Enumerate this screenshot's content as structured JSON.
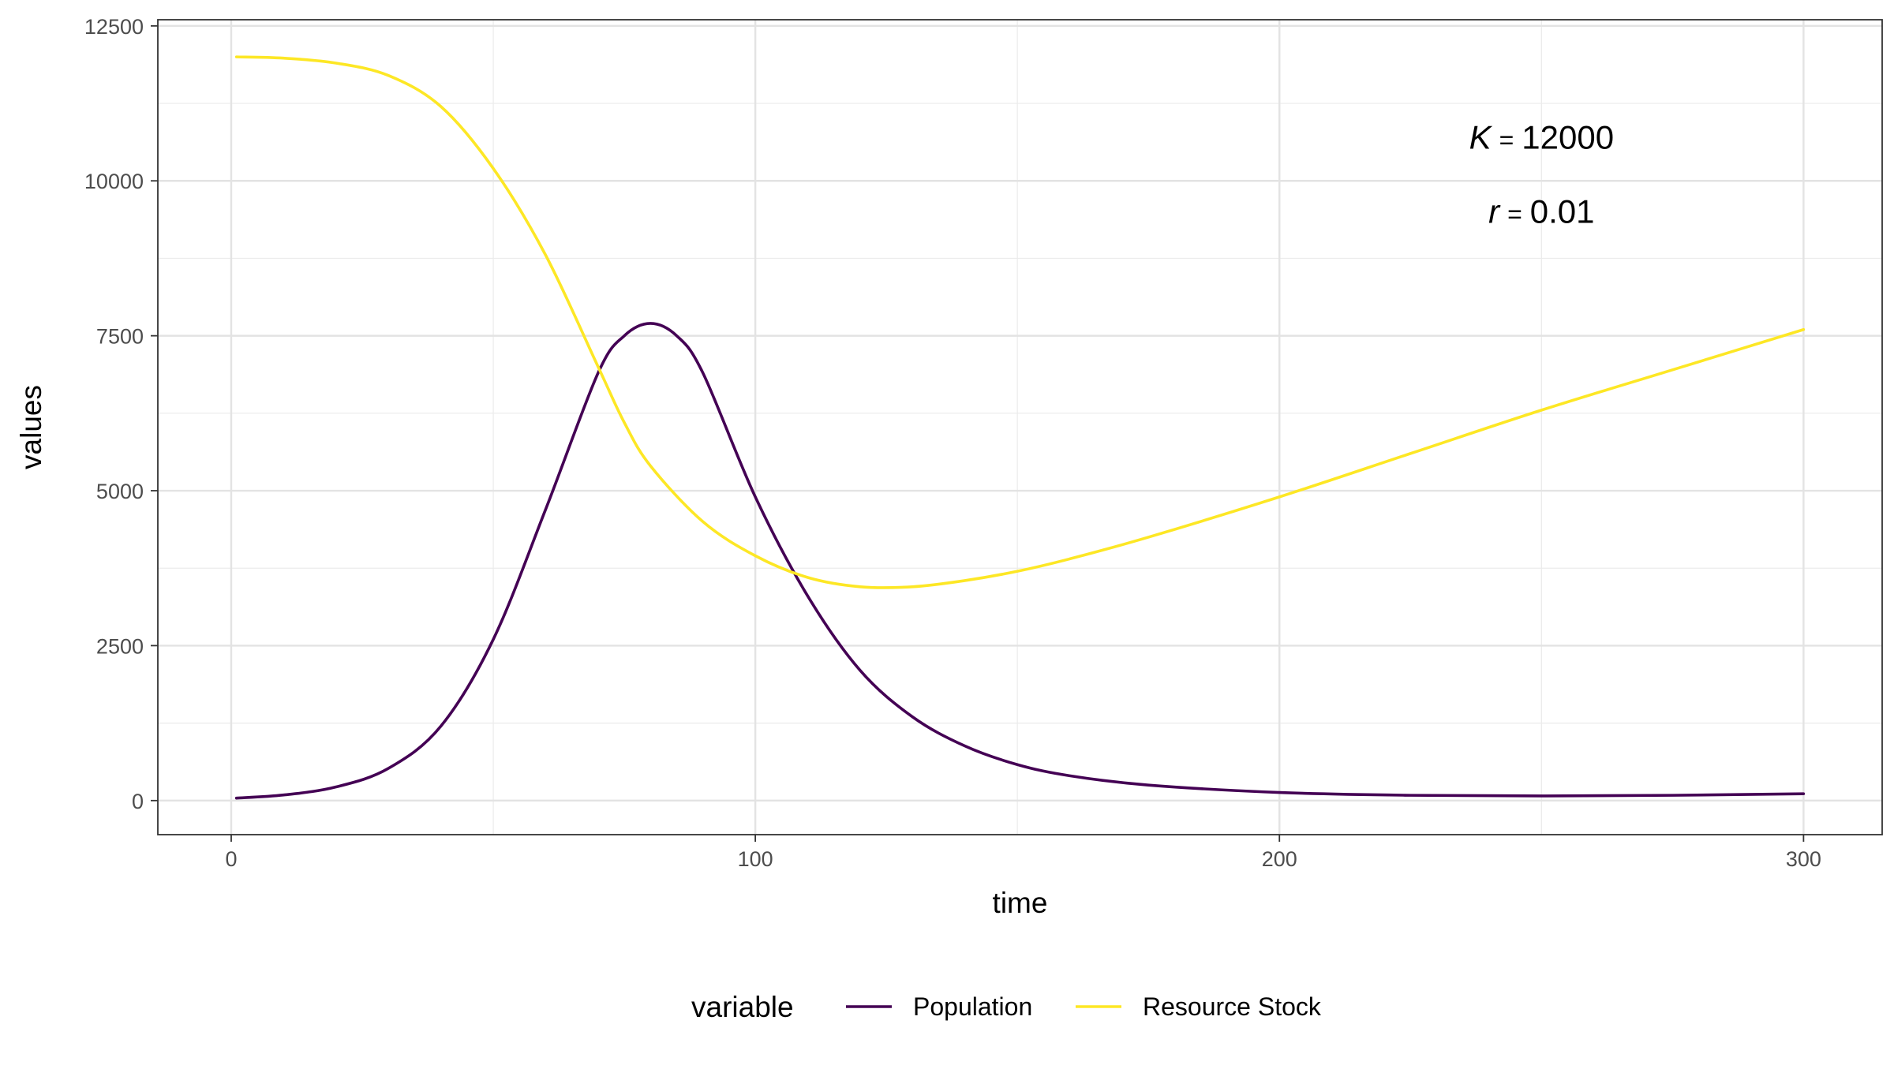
{
  "chart_data": {
    "type": "line",
    "title": "",
    "xlabel": "time",
    "ylabel": "values",
    "xlim": [
      -14,
      315
    ],
    "ylim": [
      -550,
      12600
    ],
    "x_ticks": [
      0,
      100,
      200,
      300
    ],
    "x_tick_labels": [
      "0",
      "100",
      "200",
      "300"
    ],
    "y_ticks": [
      0,
      2500,
      5000,
      7500,
      10000,
      12500
    ],
    "y_tick_labels": [
      "0",
      "2500",
      "5000",
      "7500",
      "10000",
      "12500"
    ],
    "grid": true,
    "legend": {
      "title": "variable",
      "placement": "bottom",
      "entries": [
        "Population",
        "Resource Stock"
      ]
    },
    "annotations": [
      {
        "symbol": "K",
        "equals": "=",
        "value": "12000",
        "x": 250,
        "y": 10700
      },
      {
        "symbol": "r",
        "equals": "=",
        "value": "0.01",
        "x": 250,
        "y": 9500
      }
    ],
    "series": [
      {
        "name": "Population",
        "color": "#440154",
        "x": [
          1,
          10,
          20,
          30,
          40,
          50,
          60,
          70,
          75,
          80,
          85,
          90,
          100,
          110,
          120,
          130,
          140,
          150,
          160,
          175,
          200,
          225,
          250,
          275,
          300
        ],
        "y": [
          40,
          90,
          220,
          520,
          1200,
          2600,
          4700,
          6900,
          7500,
          7700,
          7500,
          6900,
          4900,
          3300,
          2100,
          1350,
          880,
          580,
          400,
          250,
          130,
          85,
          75,
          85,
          110
        ]
      },
      {
        "name": "Resource Stock",
        "color": "#FDE725",
        "x": [
          1,
          10,
          20,
          30,
          40,
          50,
          60,
          70,
          75,
          80,
          90,
          100,
          110,
          120,
          130,
          140,
          150,
          160,
          175,
          200,
          225,
          250,
          275,
          300
        ],
        "y": [
          12000,
          11980,
          11900,
          11700,
          11200,
          10200,
          8800,
          7000,
          6100,
          5400,
          4500,
          3950,
          3600,
          3450,
          3450,
          3550,
          3700,
          3900,
          4250,
          4900,
          5600,
          6300,
          6950,
          7600
        ]
      }
    ]
  }
}
